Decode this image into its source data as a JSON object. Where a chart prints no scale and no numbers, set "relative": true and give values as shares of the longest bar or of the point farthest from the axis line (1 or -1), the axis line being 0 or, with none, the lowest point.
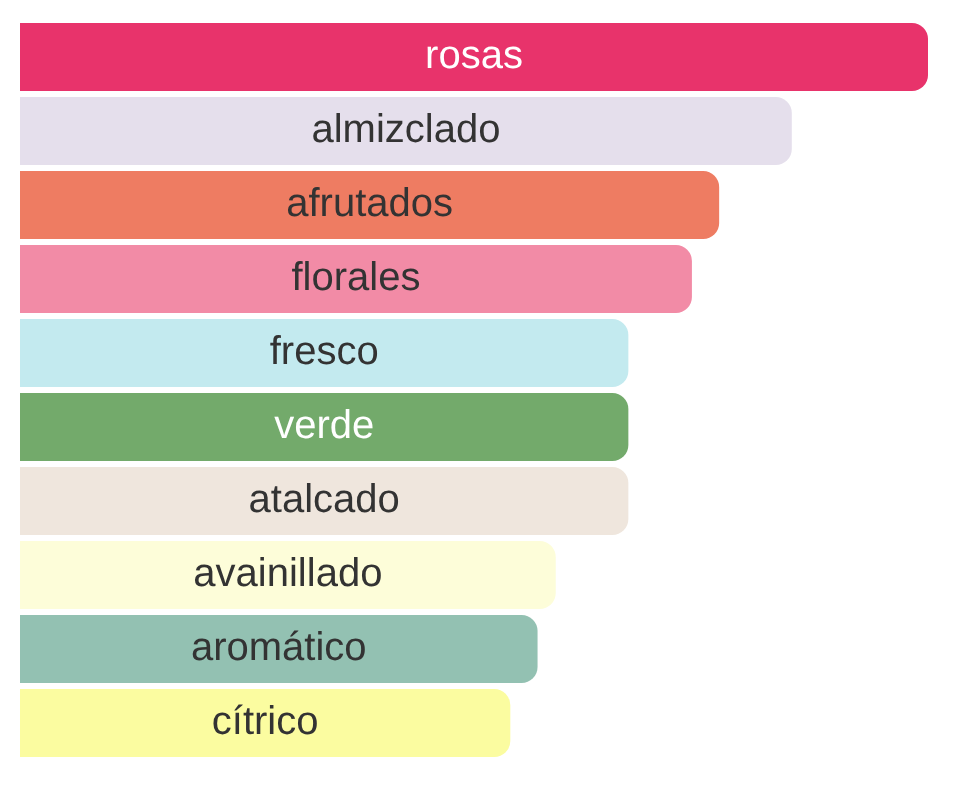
{
  "chart_data": {
    "type": "bar",
    "orientation": "horizontal",
    "relative": true,
    "categories": [
      "rosas",
      "almizclado",
      "afrutados",
      "florales",
      "fresco",
      "verde",
      "atalcado",
      "avainillado",
      "aromático",
      "cítrico"
    ],
    "values": [
      1,
      0.85,
      0.77,
      0.74,
      0.67,
      0.67,
      0.67,
      0.59,
      0.57,
      0.54
    ],
    "colors": [
      "#e8336b",
      "#e5dfec",
      "#ee7c62",
      "#f28ba6",
      "#c3eaef",
      "#73aa6b",
      "#efe6dd",
      "#fdfdd9",
      "#93c1b2",
      "#fbfca0"
    ],
    "legend": false
  }
}
